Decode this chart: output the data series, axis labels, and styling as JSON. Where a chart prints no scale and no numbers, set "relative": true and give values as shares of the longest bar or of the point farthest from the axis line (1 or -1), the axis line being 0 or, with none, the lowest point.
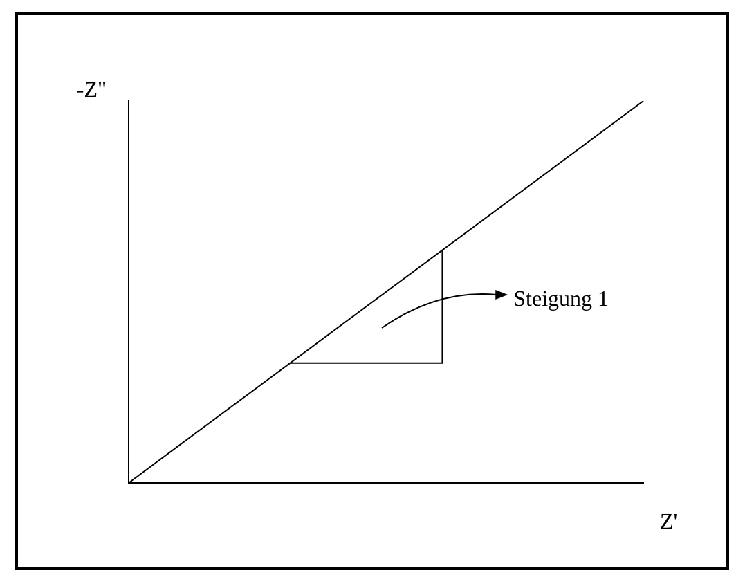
{
  "chart_data": {
    "type": "line",
    "xlabel": "Z'",
    "ylabel": "-Z\"",
    "categories": [
      null,
      null
    ],
    "relative": true,
    "series": [
      {
        "color": "#000000",
        "values": [
          0,
          1
        ]
      }
    ],
    "annotations": [
      "Steigung 1"
    ]
  }
}
